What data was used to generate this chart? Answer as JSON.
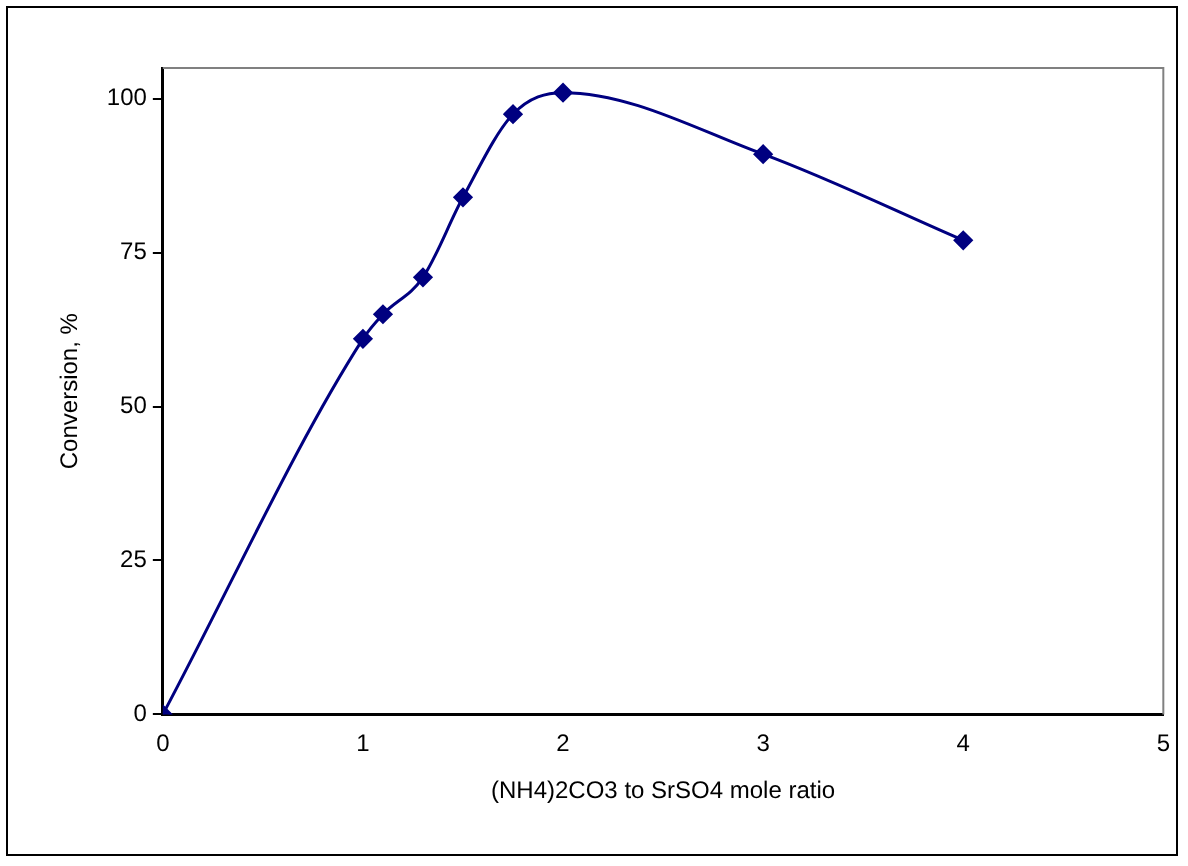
{
  "chart_data": {
    "type": "line",
    "xlabel": "(NH4)2CO3 to SrSO4 mole ratio",
    "ylabel": "Conversion, %",
    "x": [
      0,
      1,
      1.1,
      1.3,
      1.5,
      1.75,
      2,
      3,
      4
    ],
    "series": [
      {
        "color": "#000080",
        "values": [
          0,
          61,
          65,
          71,
          84,
          97.5,
          101,
          91,
          77
        ]
      }
    ],
    "xlim": [
      0,
      5
    ],
    "xticks": [
      0,
      1,
      2,
      3,
      4,
      5
    ],
    "ylim": [
      0,
      105
    ],
    "yticks": [
      0,
      25,
      50,
      75,
      100
    ],
    "grid": false,
    "legend": false,
    "marker": "diamond",
    "line_style": "solid"
  }
}
